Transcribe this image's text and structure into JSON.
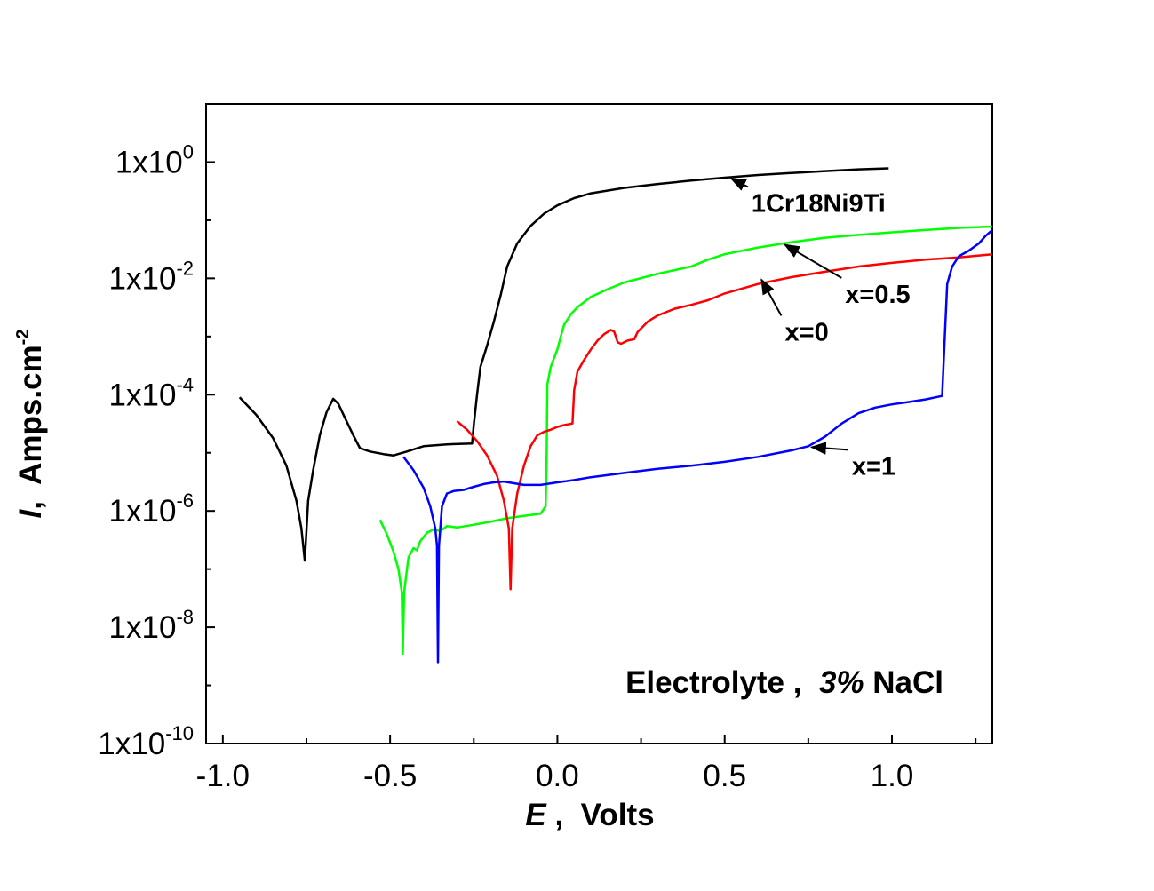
{
  "chart_data": {
    "type": "line",
    "title": "",
    "xlabel": {
      "symbol": "E",
      "sep": " ,  ",
      "unit": "Volts"
    },
    "ylabel": {
      "symbol": "I",
      "sep": ",  ",
      "unit": "Amps.cm",
      "unit_exp": "-2"
    },
    "x_scale": "linear",
    "y_scale": "log",
    "xlim": [
      -1.05,
      1.3
    ],
    "ylim": [
      1e-10,
      10
    ],
    "grid": false,
    "legend": "none",
    "x_ticks": [
      {
        "value": -1.0,
        "label": "-1.0"
      },
      {
        "value": -0.5,
        "label": "-0.5"
      },
      {
        "value": 0.0,
        "label": "0.0"
      },
      {
        "value": 0.5,
        "label": "0.5"
      },
      {
        "value": 1.0,
        "label": "1.0"
      }
    ],
    "y_ticks": [
      {
        "value": 1.0,
        "mantissa": "1x10",
        "exp": "0"
      },
      {
        "value": 0.01,
        "mantissa": "1x10",
        "exp": "-2"
      },
      {
        "value": 0.0001,
        "mantissa": "1x10",
        "exp": "-4"
      },
      {
        "value": 1e-06,
        "mantissa": "1x10",
        "exp": "-6"
      },
      {
        "value": 1e-08,
        "mantissa": "1x10",
        "exp": "-8"
      },
      {
        "value": 1e-10,
        "mantissa": "1x10",
        "exp": "-10"
      }
    ],
    "series": [
      {
        "name": "1Cr18Ni9Ti",
        "color": "#000000",
        "points": [
          [
            -0.95,
            9e-05
          ],
          [
            -0.9,
            4.5e-05
          ],
          [
            -0.85,
            1.8e-05
          ],
          [
            -0.81,
            6e-06
          ],
          [
            -0.78,
            1.5e-06
          ],
          [
            -0.765,
            5e-07
          ],
          [
            -0.755,
            1.4e-07
          ],
          [
            -0.745,
            1.5e-06
          ],
          [
            -0.73,
            5e-06
          ],
          [
            -0.71,
            2e-05
          ],
          [
            -0.69,
            5e-05
          ],
          [
            -0.67,
            8.5e-05
          ],
          [
            -0.655,
            7e-05
          ],
          [
            -0.635,
            4e-05
          ],
          [
            -0.61,
            2e-05
          ],
          [
            -0.59,
            1.2e-05
          ],
          [
            -0.56,
            1.05e-05
          ],
          [
            -0.52,
            9.5e-06
          ],
          [
            -0.49,
            9e-06
          ],
          [
            -0.45,
            1.05e-05
          ],
          [
            -0.4,
            1.3e-05
          ],
          [
            -0.33,
            1.4e-05
          ],
          [
            -0.255,
            1.45e-05
          ],
          [
            -0.25,
            3e-05
          ],
          [
            -0.24,
            0.0001
          ],
          [
            -0.23,
            0.0003
          ],
          [
            -0.21,
            0.0007
          ],
          [
            -0.19,
            0.0018
          ],
          [
            -0.17,
            0.005
          ],
          [
            -0.15,
            0.016
          ],
          [
            -0.12,
            0.04
          ],
          [
            -0.08,
            0.08
          ],
          [
            -0.04,
            0.13
          ],
          [
            0.0,
            0.18
          ],
          [
            0.05,
            0.24
          ],
          [
            0.1,
            0.29
          ],
          [
            0.2,
            0.36
          ],
          [
            0.3,
            0.42
          ],
          [
            0.4,
            0.48
          ],
          [
            0.5,
            0.54
          ],
          [
            0.6,
            0.6
          ],
          [
            0.7,
            0.65
          ],
          [
            0.8,
            0.7
          ],
          [
            0.9,
            0.75
          ],
          [
            0.99,
            0.78
          ]
        ]
      },
      {
        "name": "x=0.5",
        "color": "#00ff00",
        "points": [
          [
            -0.53,
            7e-07
          ],
          [
            -0.51,
            4e-07
          ],
          [
            -0.49,
            2e-07
          ],
          [
            -0.475,
            1e-07
          ],
          [
            -0.465,
            4e-08
          ],
          [
            -0.462,
            3.5e-09
          ],
          [
            -0.458,
            4e-08
          ],
          [
            -0.445,
            1.6e-07
          ],
          [
            -0.43,
            2.3e-07
          ],
          [
            -0.42,
            2.1e-07
          ],
          [
            -0.41,
            3e-07
          ],
          [
            -0.39,
            4.2e-07
          ],
          [
            -0.37,
            4.8e-07
          ],
          [
            -0.35,
            4.5e-07
          ],
          [
            -0.33,
            5.5e-07
          ],
          [
            -0.3,
            5.2e-07
          ],
          [
            -0.25,
            5.8e-07
          ],
          [
            -0.2,
            6.5e-07
          ],
          [
            -0.15,
            7.5e-07
          ],
          [
            -0.1,
            8.2e-07
          ],
          [
            -0.05,
            9e-07
          ],
          [
            -0.035,
            1.2e-06
          ],
          [
            -0.032,
            1e-05
          ],
          [
            -0.03,
            0.00015
          ],
          [
            -0.02,
            0.0003
          ],
          [
            0.0,
            0.0006
          ],
          [
            0.01,
            0.001
          ],
          [
            0.02,
            0.0016
          ],
          [
            0.04,
            0.0024
          ],
          [
            0.06,
            0.0032
          ],
          [
            0.1,
            0.0048
          ],
          [
            0.15,
            0.0065
          ],
          [
            0.2,
            0.0085
          ],
          [
            0.3,
            0.012
          ],
          [
            0.4,
            0.016
          ],
          [
            0.45,
            0.021
          ],
          [
            0.5,
            0.026
          ],
          [
            0.6,
            0.034
          ],
          [
            0.7,
            0.042
          ],
          [
            0.8,
            0.05
          ],
          [
            0.9,
            0.056
          ],
          [
            1.0,
            0.062
          ],
          [
            1.1,
            0.068
          ],
          [
            1.2,
            0.074
          ],
          [
            1.3,
            0.078
          ]
        ]
      },
      {
        "name": "x=0",
        "color": "#ff0000",
        "points": [
          [
            -0.3,
            3.5e-05
          ],
          [
            -0.27,
            2.5e-05
          ],
          [
            -0.24,
            1.6e-05
          ],
          [
            -0.21,
            9e-06
          ],
          [
            -0.18,
            4e-06
          ],
          [
            -0.16,
            1.5e-06
          ],
          [
            -0.145,
            5e-07
          ],
          [
            -0.14,
            4.5e-08
          ],
          [
            -0.135,
            5e-07
          ],
          [
            -0.12,
            2e-06
          ],
          [
            -0.1,
            6e-06
          ],
          [
            -0.08,
            1.3e-05
          ],
          [
            -0.06,
            2e-05
          ],
          [
            -0.04,
            2.3e-05
          ],
          [
            -0.02,
            2.5e-05
          ],
          [
            0.0,
            2.8e-05
          ],
          [
            0.02,
            3e-05
          ],
          [
            0.045,
            3.2e-05
          ],
          [
            0.05,
            0.00012
          ],
          [
            0.06,
            0.00025
          ],
          [
            0.08,
            0.0004
          ],
          [
            0.1,
            0.0006
          ],
          [
            0.12,
            0.00085
          ],
          [
            0.14,
            0.0011
          ],
          [
            0.16,
            0.0013
          ],
          [
            0.17,
            0.0012
          ],
          [
            0.18,
            0.0008
          ],
          [
            0.19,
            0.00075
          ],
          [
            0.21,
            0.00085
          ],
          [
            0.23,
            0.0009
          ],
          [
            0.24,
            0.0012
          ],
          [
            0.27,
            0.0018
          ],
          [
            0.3,
            0.0023
          ],
          [
            0.35,
            0.003
          ],
          [
            0.4,
            0.0035
          ],
          [
            0.45,
            0.0042
          ],
          [
            0.5,
            0.0055
          ],
          [
            0.6,
            0.008
          ],
          [
            0.7,
            0.0105
          ],
          [
            0.8,
            0.013
          ],
          [
            0.9,
            0.016
          ],
          [
            1.0,
            0.0185
          ],
          [
            1.1,
            0.021
          ],
          [
            1.2,
            0.023
          ],
          [
            1.3,
            0.026
          ]
        ]
      },
      {
        "name": "x=1",
        "color": "#0000ff",
        "points": [
          [
            -0.46,
            8.5e-06
          ],
          [
            -0.43,
            5e-06
          ],
          [
            -0.4,
            2.5e-06
          ],
          [
            -0.38,
            1.2e-06
          ],
          [
            -0.365,
            5e-07
          ],
          [
            -0.36,
            2.5e-07
          ],
          [
            -0.357,
            2.5e-09
          ],
          [
            -0.354,
            2.5e-07
          ],
          [
            -0.345,
            1.2e-06
          ],
          [
            -0.33,
            2e-06
          ],
          [
            -0.31,
            2.2e-06
          ],
          [
            -0.28,
            2.3e-06
          ],
          [
            -0.25,
            2.6e-06
          ],
          [
            -0.22,
            2.9e-06
          ],
          [
            -0.19,
            3.1e-06
          ],
          [
            -0.16,
            3.2e-06
          ],
          [
            -0.13,
            3e-06
          ],
          [
            -0.1,
            2.8e-06
          ],
          [
            -0.05,
            2.8e-06
          ],
          [
            0.0,
            3.1e-06
          ],
          [
            0.05,
            3.4e-06
          ],
          [
            0.1,
            3.8e-06
          ],
          [
            0.2,
            4.5e-06
          ],
          [
            0.3,
            5.3e-06
          ],
          [
            0.4,
            6e-06
          ],
          [
            0.5,
            7e-06
          ],
          [
            0.6,
            8.5e-06
          ],
          [
            0.7,
            1.1e-05
          ],
          [
            0.75,
            1.3e-05
          ],
          [
            0.8,
            1.9e-05
          ],
          [
            0.85,
            3.2e-05
          ],
          [
            0.9,
            4.8e-05
          ],
          [
            0.95,
            6e-05
          ],
          [
            1.0,
            6.8e-05
          ],
          [
            1.05,
            7.5e-05
          ],
          [
            1.1,
            8.3e-05
          ],
          [
            1.15,
            9.5e-05
          ],
          [
            1.158,
            0.001
          ],
          [
            1.165,
            0.008
          ],
          [
            1.18,
            0.016
          ],
          [
            1.2,
            0.024
          ],
          [
            1.23,
            0.03
          ],
          [
            1.26,
            0.04
          ],
          [
            1.28,
            0.054
          ],
          [
            1.3,
            0.068
          ]
        ]
      }
    ],
    "annotations": [
      {
        "text": "1Cr18Ni9Ti",
        "tx": 0.58,
        "ty": 0.14,
        "ax": 0.52,
        "ay": 0.52
      },
      {
        "text": "x=0.5",
        "tx": 0.86,
        "ty": 0.0038,
        "ax": 0.68,
        "ay": 0.038
      },
      {
        "text": "x=0",
        "tx": 0.68,
        "ty": 0.00085,
        "ax": 0.61,
        "ay": 0.0095
      },
      {
        "text": "x=1",
        "tx": 0.88,
        "ty": 4.2e-06,
        "ax": 0.76,
        "ay": 1.25e-05
      }
    ],
    "note": {
      "prefix": "Electrolyte ,  ",
      "italic": "3%",
      "suffix": " NaCl"
    }
  }
}
